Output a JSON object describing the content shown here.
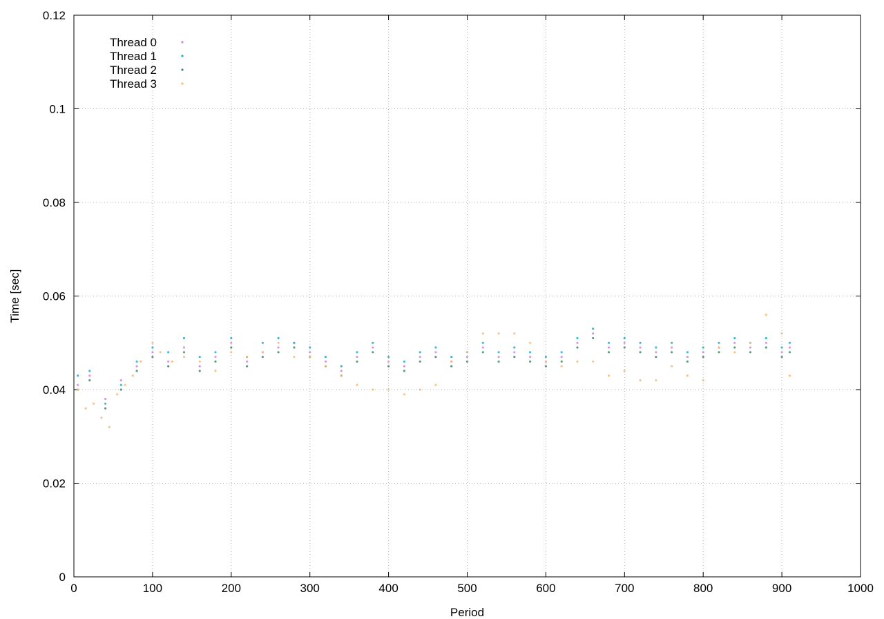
{
  "chart_data": {
    "type": "scatter",
    "xlabel": "Period",
    "ylabel": "Time [sec]",
    "xlim": [
      0,
      1000
    ],
    "ylim": [
      0,
      0.12
    ],
    "x_ticks": [
      0,
      100,
      200,
      300,
      400,
      500,
      600,
      700,
      800,
      900,
      1000
    ],
    "y_ticks": [
      0,
      0.02,
      0.04,
      0.06,
      0.08,
      0.1,
      0.12
    ],
    "x_tick_labels": [
      "0",
      "100",
      "200",
      "300",
      "400",
      "500",
      "600",
      "700",
      "800",
      "900",
      "1000"
    ],
    "y_tick_labels": [
      "0",
      "0.02",
      "0.04",
      "0.06",
      "0.08",
      "0.1",
      "0.12"
    ],
    "grid": true,
    "legend_position": "top-left",
    "series": [
      {
        "name": "Thread 0",
        "color": "#cc88dd",
        "points": [
          [
            5,
            0.041
          ],
          [
            20,
            0.043
          ],
          [
            40,
            0.038
          ],
          [
            60,
            0.042
          ],
          [
            80,
            0.045
          ],
          [
            100,
            0.048
          ],
          [
            120,
            0.046
          ],
          [
            140,
            0.049
          ],
          [
            160,
            0.045
          ],
          [
            180,
            0.047
          ],
          [
            200,
            0.05
          ],
          [
            220,
            0.046
          ],
          [
            240,
            0.048
          ],
          [
            260,
            0.049
          ],
          [
            280,
            0.05
          ],
          [
            300,
            0.048
          ],
          [
            320,
            0.046
          ],
          [
            340,
            0.044
          ],
          [
            360,
            0.047
          ],
          [
            380,
            0.049
          ],
          [
            400,
            0.046
          ],
          [
            420,
            0.045
          ],
          [
            440,
            0.047
          ],
          [
            460,
            0.048
          ],
          [
            480,
            0.046
          ],
          [
            500,
            0.047
          ],
          [
            520,
            0.049
          ],
          [
            540,
            0.047
          ],
          [
            560,
            0.048
          ],
          [
            580,
            0.047
          ],
          [
            600,
            0.046
          ],
          [
            620,
            0.047
          ],
          [
            640,
            0.05
          ],
          [
            660,
            0.052
          ],
          [
            680,
            0.049
          ],
          [
            700,
            0.05
          ],
          [
            720,
            0.049
          ],
          [
            740,
            0.048
          ],
          [
            760,
            0.049
          ],
          [
            780,
            0.047
          ],
          [
            800,
            0.048
          ],
          [
            820,
            0.049
          ],
          [
            840,
            0.05
          ],
          [
            860,
            0.049
          ],
          [
            880,
            0.05
          ],
          [
            900,
            0.048
          ],
          [
            910,
            0.049
          ]
        ]
      },
      {
        "name": "Thread 1",
        "color": "#22aacc",
        "points": [
          [
            5,
            0.043
          ],
          [
            20,
            0.044
          ],
          [
            40,
            0.037
          ],
          [
            60,
            0.041
          ],
          [
            80,
            0.046
          ],
          [
            100,
            0.049
          ],
          [
            120,
            0.048
          ],
          [
            140,
            0.051
          ],
          [
            160,
            0.047
          ],
          [
            180,
            0.048
          ],
          [
            200,
            0.051
          ],
          [
            220,
            0.047
          ],
          [
            240,
            0.05
          ],
          [
            260,
            0.051
          ],
          [
            280,
            0.05
          ],
          [
            300,
            0.049
          ],
          [
            320,
            0.047
          ],
          [
            340,
            0.045
          ],
          [
            360,
            0.048
          ],
          [
            380,
            0.05
          ],
          [
            400,
            0.047
          ],
          [
            420,
            0.046
          ],
          [
            440,
            0.048
          ],
          [
            460,
            0.049
          ],
          [
            480,
            0.047
          ],
          [
            500,
            0.048
          ],
          [
            520,
            0.05
          ],
          [
            540,
            0.048
          ],
          [
            560,
            0.049
          ],
          [
            580,
            0.048
          ],
          [
            600,
            0.047
          ],
          [
            620,
            0.048
          ],
          [
            640,
            0.051
          ],
          [
            660,
            0.053
          ],
          [
            680,
            0.05
          ],
          [
            700,
            0.051
          ],
          [
            720,
            0.05
          ],
          [
            740,
            0.049
          ],
          [
            760,
            0.05
          ],
          [
            780,
            0.048
          ],
          [
            800,
            0.049
          ],
          [
            820,
            0.05
          ],
          [
            840,
            0.051
          ],
          [
            860,
            0.05
          ],
          [
            880,
            0.051
          ],
          [
            900,
            0.049
          ],
          [
            910,
            0.05
          ]
        ]
      },
      {
        "name": "Thread 2",
        "color": "#448866",
        "points": [
          [
            5,
            0.04
          ],
          [
            20,
            0.042
          ],
          [
            40,
            0.036
          ],
          [
            60,
            0.04
          ],
          [
            80,
            0.044
          ],
          [
            100,
            0.047
          ],
          [
            120,
            0.045
          ],
          [
            140,
            0.048
          ],
          [
            160,
            0.044
          ],
          [
            180,
            0.046
          ],
          [
            200,
            0.049
          ],
          [
            220,
            0.045
          ],
          [
            240,
            0.047
          ],
          [
            260,
            0.048
          ],
          [
            280,
            0.049
          ],
          [
            300,
            0.047
          ],
          [
            320,
            0.045
          ],
          [
            340,
            0.043
          ],
          [
            360,
            0.046
          ],
          [
            380,
            0.048
          ],
          [
            400,
            0.045
          ],
          [
            420,
            0.044
          ],
          [
            440,
            0.046
          ],
          [
            460,
            0.047
          ],
          [
            480,
            0.045
          ],
          [
            500,
            0.046
          ],
          [
            520,
            0.048
          ],
          [
            540,
            0.046
          ],
          [
            560,
            0.047
          ],
          [
            580,
            0.046
          ],
          [
            600,
            0.045
          ],
          [
            620,
            0.046
          ],
          [
            640,
            0.049
          ],
          [
            660,
            0.051
          ],
          [
            680,
            0.048
          ],
          [
            700,
            0.049
          ],
          [
            720,
            0.048
          ],
          [
            740,
            0.047
          ],
          [
            760,
            0.048
          ],
          [
            780,
            0.046
          ],
          [
            800,
            0.047
          ],
          [
            820,
            0.048
          ],
          [
            840,
            0.049
          ],
          [
            860,
            0.048
          ],
          [
            880,
            0.049
          ],
          [
            900,
            0.047
          ],
          [
            910,
            0.048
          ]
        ]
      },
      {
        "name": "Thread 3",
        "color": "#f5bb77",
        "points": [
          [
            5,
            0.04
          ],
          [
            15,
            0.036
          ],
          [
            25,
            0.037
          ],
          [
            35,
            0.034
          ],
          [
            45,
            0.032
          ],
          [
            55,
            0.039
          ],
          [
            65,
            0.041
          ],
          [
            75,
            0.043
          ],
          [
            85,
            0.046
          ],
          [
            100,
            0.05
          ],
          [
            110,
            0.048
          ],
          [
            125,
            0.046
          ],
          [
            140,
            0.047
          ],
          [
            160,
            0.046
          ],
          [
            180,
            0.044
          ],
          [
            200,
            0.048
          ],
          [
            220,
            0.047
          ],
          [
            240,
            0.048
          ],
          [
            260,
            0.05
          ],
          [
            280,
            0.047
          ],
          [
            300,
            0.047
          ],
          [
            320,
            0.045
          ],
          [
            340,
            0.043
          ],
          [
            360,
            0.041
          ],
          [
            380,
            0.04
          ],
          [
            400,
            0.04
          ],
          [
            420,
            0.039
          ],
          [
            440,
            0.04
          ],
          [
            460,
            0.041
          ],
          [
            480,
            0.046
          ],
          [
            500,
            0.048
          ],
          [
            520,
            0.052
          ],
          [
            540,
            0.052
          ],
          [
            560,
            0.052
          ],
          [
            580,
            0.05
          ],
          [
            600,
            0.046
          ],
          [
            620,
            0.045
          ],
          [
            640,
            0.046
          ],
          [
            660,
            0.046
          ],
          [
            680,
            0.043
          ],
          [
            700,
            0.044
          ],
          [
            720,
            0.042
          ],
          [
            740,
            0.042
          ],
          [
            760,
            0.045
          ],
          [
            780,
            0.043
          ],
          [
            800,
            0.042
          ],
          [
            820,
            0.049
          ],
          [
            840,
            0.048
          ],
          [
            860,
            0.05
          ],
          [
            880,
            0.056
          ],
          [
            900,
            0.052
          ],
          [
            910,
            0.043
          ]
        ]
      }
    ]
  }
}
